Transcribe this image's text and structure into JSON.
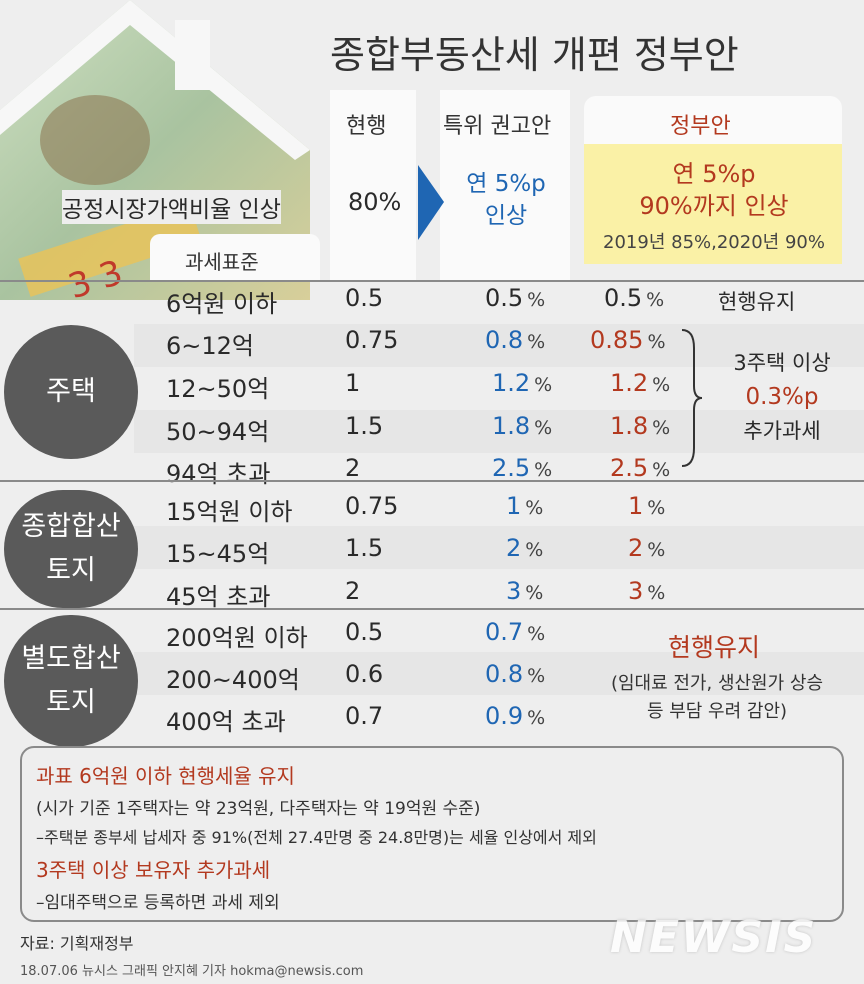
{
  "title": "종합부동산세 개편 정부안",
  "columns": {
    "current": "현행",
    "committee": "특위 권고안",
    "government": "정부안"
  },
  "ratio": {
    "label": "공정시장가액비율 인상",
    "current": "80%",
    "committee": [
      "연 5%p",
      "인상"
    ],
    "government": [
      "연 5%p",
      "90%까지 인상"
    ],
    "government_note": "2019년 85%,2020년 90%"
  },
  "tax_base_label": "과세표준",
  "pct_unit": "%",
  "groups": [
    {
      "label": [
        "주택"
      ],
      "rows": [
        {
          "base": "6억원 이하",
          "current": "0.5",
          "committee": "0.5",
          "government": "0.5"
        },
        {
          "base": "6~12억",
          "current": "0.75",
          "committee": "0.8",
          "government": "0.85"
        },
        {
          "base": "12~50억",
          "current": "1",
          "committee": "1.2",
          "government": "1.2"
        },
        {
          "base": "50~94억",
          "current": "1.5",
          "committee": "1.8",
          "government": "1.8"
        },
        {
          "base": "94억 초과",
          "current": "2",
          "committee": "2.5",
          "government": "2.5"
        }
      ],
      "note_keep": "현행유지",
      "note_extra": [
        "3주택 이상",
        "0.3%p",
        "추가과세"
      ]
    },
    {
      "label": [
        "종합합산",
        "토지"
      ],
      "rows": [
        {
          "base": "15억원 이하",
          "current": "0.75",
          "committee": "1",
          "government": "1"
        },
        {
          "base": "15~45억",
          "current": "1.5",
          "committee": "2",
          "government": "2"
        },
        {
          "base": "45억 초과",
          "current": "2",
          "committee": "3",
          "government": "3"
        }
      ]
    },
    {
      "label": [
        "별도합산",
        "토지"
      ],
      "rows": [
        {
          "base": "200억원 이하",
          "current": "0.5",
          "committee": "0.7"
        },
        {
          "base": "200~400억",
          "current": "0.6",
          "committee": "0.8"
        },
        {
          "base": "400억 초과",
          "current": "0.7",
          "committee": "0.9"
        }
      ],
      "note_keep": "현행유지",
      "note_reason": [
        "(임대료 전가, 생산원가 상승",
        "등 부담 우려 감안)"
      ]
    }
  ],
  "summary": {
    "line1": "과표 6억원 이하 현행세율 유지",
    "line2": "(시가 기준 1주택자는 약 23억원, 다주택자는 약 19억원 수준)",
    "line3": "–주택분 종부세 납세자 중 91%(전체 27.4만명 중 24.8만명)는 세율 인상에서 제외",
    "line4": "3주택 이상 보유자 추가과세",
    "line5": "–임대주택으로 등록하면 과세 제외"
  },
  "source": "자료: 기획재정부",
  "credit": "18.07.06 뉴시스 그래픽 안지혜 기자 hokma@newsis.com",
  "watermark": "NEWSIS",
  "colors": {
    "blue": "#1f66b3",
    "red": "#b3391f",
    "highlight": "#faf1a6",
    "pill": "#5a5a5a"
  }
}
